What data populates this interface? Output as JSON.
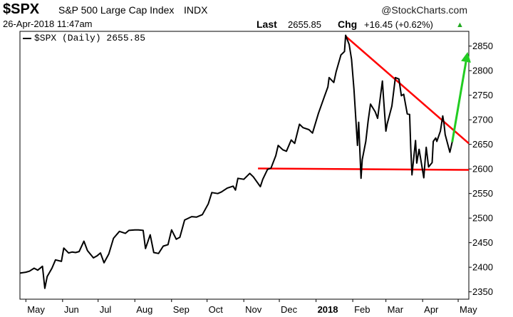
{
  "header": {
    "ticker": "$SPX",
    "index_name": "S&P 500 Large Cap Index",
    "exchange": "INDX",
    "brand": "@StockCharts.com",
    "datetime": "26-Apr-2018 11:47am",
    "last_label": "Last",
    "last_value": "2655.85",
    "chg_label": "Chg",
    "chg_value": "+16.45 (+0.62%)",
    "chg_color": "#22aa22"
  },
  "chart_data": {
    "type": "line",
    "legend": "$SPX (Daily) 2655.85",
    "x_tick_labels": [
      "May",
      "Jun",
      "Jul",
      "Aug",
      "Sep",
      "Oct",
      "Nov",
      "Dec",
      "2018",
      "Feb",
      "Mar",
      "Apr",
      "May"
    ],
    "y_ticks": [
      2350,
      2400,
      2450,
      2500,
      2550,
      2600,
      2650,
      2700,
      2750,
      2800,
      2850
    ],
    "ylim": [
      2335,
      2880
    ],
    "xlim": [
      "2017-04-26",
      "2018-05-10"
    ],
    "series": [
      {
        "color": "#000000",
        "points": [
          [
            "2017-04-26",
            2388
          ],
          [
            "2017-05-01",
            2390
          ],
          [
            "2017-05-04",
            2392
          ],
          [
            "2017-05-08",
            2398
          ],
          [
            "2017-05-11",
            2394
          ],
          [
            "2017-05-15",
            2402
          ],
          [
            "2017-05-17",
            2357
          ],
          [
            "2017-05-19",
            2381
          ],
          [
            "2017-05-23",
            2398
          ],
          [
            "2017-05-26",
            2415
          ],
          [
            "2017-05-31",
            2412
          ],
          [
            "2017-06-02",
            2439
          ],
          [
            "2017-06-06",
            2429
          ],
          [
            "2017-06-09",
            2431
          ],
          [
            "2017-06-12",
            2430
          ],
          [
            "2017-06-15",
            2432
          ],
          [
            "2017-06-19",
            2453
          ],
          [
            "2017-06-22",
            2434
          ],
          [
            "2017-06-27",
            2419
          ],
          [
            "2017-06-30",
            2423
          ],
          [
            "2017-07-03",
            2429
          ],
          [
            "2017-07-06",
            2409
          ],
          [
            "2017-07-10",
            2427
          ],
          [
            "2017-07-14",
            2459
          ],
          [
            "2017-07-19",
            2473
          ],
          [
            "2017-07-24",
            2469
          ],
          [
            "2017-07-27",
            2475
          ],
          [
            "2017-08-01",
            2476
          ],
          [
            "2017-08-04",
            2476
          ],
          [
            "2017-08-08",
            2475
          ],
          [
            "2017-08-10",
            2438
          ],
          [
            "2017-08-14",
            2466
          ],
          [
            "2017-08-17",
            2430
          ],
          [
            "2017-08-21",
            2428
          ],
          [
            "2017-08-25",
            2443
          ],
          [
            "2017-08-29",
            2446
          ],
          [
            "2017-09-01",
            2476
          ],
          [
            "2017-09-05",
            2457
          ],
          [
            "2017-09-08",
            2461
          ],
          [
            "2017-09-12",
            2496
          ],
          [
            "2017-09-18",
            2503
          ],
          [
            "2017-09-22",
            2502
          ],
          [
            "2017-09-27",
            2507
          ],
          [
            "2017-10-02",
            2529
          ],
          [
            "2017-10-05",
            2552
          ],
          [
            "2017-10-10",
            2550
          ],
          [
            "2017-10-13",
            2553
          ],
          [
            "2017-10-18",
            2561
          ],
          [
            "2017-10-23",
            2565
          ],
          [
            "2017-10-25",
            2557
          ],
          [
            "2017-10-27",
            2581
          ],
          [
            "2017-11-01",
            2579
          ],
          [
            "2017-11-06",
            2591
          ],
          [
            "2017-11-09",
            2584
          ],
          [
            "2017-11-15",
            2564
          ],
          [
            "2017-11-17",
            2579
          ],
          [
            "2017-11-21",
            2599
          ],
          [
            "2017-11-24",
            2602
          ],
          [
            "2017-11-28",
            2627
          ],
          [
            "2017-11-30",
            2648
          ],
          [
            "2017-12-04",
            2639
          ],
          [
            "2017-12-07",
            2636
          ],
          [
            "2017-12-11",
            2659
          ],
          [
            "2017-12-14",
            2652
          ],
          [
            "2017-12-18",
            2691
          ],
          [
            "2017-12-21",
            2684
          ],
          [
            "2017-12-26",
            2680
          ],
          [
            "2017-12-29",
            2673
          ],
          [
            "2018-01-03",
            2713
          ],
          [
            "2018-01-08",
            2747
          ],
          [
            "2018-01-11",
            2767
          ],
          [
            "2018-01-12",
            2786
          ],
          [
            "2018-01-16",
            2776
          ],
          [
            "2018-01-18",
            2798
          ],
          [
            "2018-01-22",
            2832
          ],
          [
            "2018-01-25",
            2839
          ],
          [
            "2018-01-26",
            2872
          ],
          [
            "2018-01-29",
            2853
          ],
          [
            "2018-01-31",
            2823
          ],
          [
            "2018-02-02",
            2762
          ],
          [
            "2018-02-05",
            2648
          ],
          [
            "2018-02-06",
            2695
          ],
          [
            "2018-02-08",
            2581
          ],
          [
            "2018-02-09",
            2619
          ],
          [
            "2018-02-12",
            2656
          ],
          [
            "2018-02-14",
            2698
          ],
          [
            "2018-02-16",
            2732
          ],
          [
            "2018-02-20",
            2716
          ],
          [
            "2018-02-22",
            2703
          ],
          [
            "2018-02-26",
            2779
          ],
          [
            "2018-02-27",
            2744
          ],
          [
            "2018-03-01",
            2677
          ],
          [
            "2018-03-02",
            2691
          ],
          [
            "2018-03-06",
            2728
          ],
          [
            "2018-03-09",
            2786
          ],
          [
            "2018-03-12",
            2783
          ],
          [
            "2018-03-14",
            2749
          ],
          [
            "2018-03-16",
            2752
          ],
          [
            "2018-03-19",
            2712
          ],
          [
            "2018-03-21",
            2711
          ],
          [
            "2018-03-22",
            2643
          ],
          [
            "2018-03-23",
            2588
          ],
          [
            "2018-03-26",
            2658
          ],
          [
            "2018-03-27",
            2612
          ],
          [
            "2018-03-29",
            2640
          ],
          [
            "2018-04-02",
            2582
          ],
          [
            "2018-04-03",
            2614
          ],
          [
            "2018-04-04",
            2644
          ],
          [
            "2018-04-06",
            2604
          ],
          [
            "2018-04-09",
            2613
          ],
          [
            "2018-04-10",
            2656
          ],
          [
            "2018-04-12",
            2663
          ],
          [
            "2018-04-13",
            2656
          ],
          [
            "2018-04-16",
            2677
          ],
          [
            "2018-04-18",
            2708
          ],
          [
            "2018-04-19",
            2693
          ],
          [
            "2018-04-20",
            2670
          ],
          [
            "2018-04-24",
            2634
          ],
          [
            "2018-04-26",
            2655
          ]
        ]
      }
    ],
    "annotations": [
      {
        "kind": "trendline",
        "color": "#ff0000",
        "from": [
          "2018-01-26",
          2870
        ],
        "to": [
          "2018-05-10",
          2652
        ]
      },
      {
        "kind": "support",
        "color": "#ff0000",
        "from": [
          "2017-11-13",
          2601
        ],
        "to": [
          "2018-05-10",
          2598
        ]
      },
      {
        "kind": "arrow",
        "color": "#22cc22",
        "from": [
          "2018-04-26",
          2655
        ],
        "to": [
          "2018-05-09",
          2838
        ]
      }
    ]
  }
}
